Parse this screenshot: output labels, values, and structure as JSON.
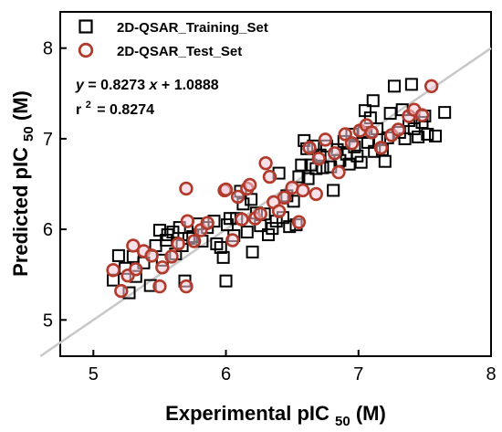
{
  "chart_data": {
    "type": "scatter",
    "xlabel": "Experimental pIC",
    "xlabel_sub": "50",
    "xlabel_unit": " (M)",
    "ylabel": "Predicted pIC",
    "ylabel_sub": "50",
    "ylabel_unit": " (M)",
    "xlim": [
      4.75,
      8.0
    ],
    "ylim": [
      4.6,
      8.4
    ],
    "xticks": [
      "5",
      "6",
      "7",
      "8"
    ],
    "yticks": [
      "5",
      "6",
      "7",
      "8"
    ],
    "grid": false,
    "legend_position": "top-left",
    "identity_line": {
      "x": [
        4.6,
        8.0
      ],
      "y": [
        4.6,
        8.0
      ],
      "color": "#c8c8c8"
    },
    "annotations": {
      "equation_y": "y",
      "equation_eq": "= 0.8273",
      "equation_x": "x",
      "equation_rest": " + 1.0888",
      "r2_r": "r",
      "r2_exp": "2",
      "r2_val": "= 0.8274"
    },
    "series": [
      {
        "name": "2D-QSAR_Training_Set",
        "marker": "square-open",
        "color": "#000000",
        "points": [
          [
            5.15,
            5.44
          ],
          [
            5.19,
            5.71
          ],
          [
            5.24,
            5.57
          ],
          [
            5.27,
            5.3
          ],
          [
            5.3,
            5.7
          ],
          [
            5.32,
            5.48
          ],
          [
            5.38,
            5.63
          ],
          [
            5.43,
            5.38
          ],
          [
            5.47,
            5.82
          ],
          [
            5.5,
            5.99
          ],
          [
            5.52,
            5.66
          ],
          [
            5.55,
            5.88
          ],
          [
            5.56,
            5.94
          ],
          [
            5.6,
            5.97
          ],
          [
            5.62,
            5.73
          ],
          [
            5.65,
            6.02
          ],
          [
            5.67,
            5.82
          ],
          [
            5.69,
            5.43
          ],
          [
            5.72,
            5.9
          ],
          [
            5.75,
            5.92
          ],
          [
            5.79,
            6.06
          ],
          [
            5.82,
            5.87
          ],
          [
            5.86,
            6.02
          ],
          [
            5.91,
            6.09
          ],
          [
            5.93,
            5.84
          ],
          [
            5.96,
            5.8
          ],
          [
            5.98,
            5.69
          ],
          [
            6.0,
            5.43
          ],
          [
            6.01,
            6.05
          ],
          [
            6.03,
            6.12
          ],
          [
            6.06,
            5.93
          ],
          [
            6.08,
            6.12
          ],
          [
            6.11,
            6.42
          ],
          [
            6.13,
            6.28
          ],
          [
            6.16,
            5.97
          ],
          [
            6.19,
            6.33
          ],
          [
            6.2,
            5.75
          ],
          [
            6.23,
            6.18
          ],
          [
            6.26,
            6.04
          ],
          [
            6.29,
            6.17
          ],
          [
            6.32,
            5.94
          ],
          [
            6.35,
            6.01
          ],
          [
            6.38,
            6.09
          ],
          [
            6.4,
            6.62
          ],
          [
            6.43,
            6.13
          ],
          [
            6.46,
            6.37
          ],
          [
            6.48,
            6.03
          ],
          [
            6.51,
            6.31
          ],
          [
            6.53,
            6.05
          ],
          [
            6.55,
            6.58
          ],
          [
            6.57,
            6.71
          ],
          [
            6.59,
            6.98
          ],
          [
            6.61,
            6.89
          ],
          [
            6.62,
            6.56
          ],
          [
            6.64,
            6.71
          ],
          [
            6.66,
            6.92
          ],
          [
            6.68,
            6.67
          ],
          [
            6.71,
            6.82
          ],
          [
            6.73,
            6.68
          ],
          [
            6.76,
            6.92
          ],
          [
            6.79,
            6.69
          ],
          [
            6.81,
            6.43
          ],
          [
            6.84,
            6.88
          ],
          [
            6.86,
            6.76
          ],
          [
            6.89,
            6.97
          ],
          [
            6.91,
            6.83
          ],
          [
            6.93,
            6.72
          ],
          [
            6.95,
            7.05
          ],
          [
            6.97,
            6.91
          ],
          [
            6.99,
            6.81
          ],
          [
            7.02,
            6.74
          ],
          [
            7.04,
            7.07
          ],
          [
            7.05,
            7.31
          ],
          [
            7.07,
            6.96
          ],
          [
            7.09,
            7.23
          ],
          [
            7.11,
            7.42
          ],
          [
            7.12,
            6.86
          ],
          [
            7.14,
            7.11
          ],
          [
            7.16,
            6.99
          ],
          [
            7.18,
            6.88
          ],
          [
            7.2,
            6.75
          ],
          [
            7.22,
            7.01
          ],
          [
            7.24,
            7.28
          ],
          [
            7.27,
            7.58
          ],
          [
            7.31,
            7.07
          ],
          [
            7.33,
            7.32
          ],
          [
            7.35,
            7.0
          ],
          [
            7.38,
            7.2
          ],
          [
            7.4,
            7.6
          ],
          [
            7.42,
            7.11
          ],
          [
            7.45,
            7.02
          ],
          [
            7.48,
            7.18
          ],
          [
            7.5,
            7.25
          ],
          [
            7.52,
            7.05
          ],
          [
            7.58,
            7.03
          ],
          [
            7.65,
            7.29
          ]
        ]
      },
      {
        "name": "2D-QSAR_Test_Set",
        "marker": "circle-open",
        "color": "#b23a2a",
        "points": [
          [
            5.15,
            5.55
          ],
          [
            5.21,
            5.32
          ],
          [
            5.26,
            5.49
          ],
          [
            5.3,
            5.82
          ],
          [
            5.32,
            5.56
          ],
          [
            5.38,
            5.76
          ],
          [
            5.44,
            5.71
          ],
          [
            5.5,
            5.37
          ],
          [
            5.52,
            5.58
          ],
          [
            5.59,
            5.7
          ],
          [
            5.64,
            5.84
          ],
          [
            5.7,
            5.37
          ],
          [
            5.7,
            6.45
          ],
          [
            5.71,
            6.09
          ],
          [
            5.76,
            5.87
          ],
          [
            5.81,
            5.99
          ],
          [
            5.86,
            6.07
          ],
          [
            5.99,
            6.43
          ],
          [
            6.0,
            6.44
          ],
          [
            6.05,
            5.88
          ],
          [
            6.09,
            6.36
          ],
          [
            6.12,
            6.11
          ],
          [
            6.16,
            6.45
          ],
          [
            6.18,
            6.49
          ],
          [
            6.22,
            6.12
          ],
          [
            6.26,
            6.17
          ],
          [
            6.3,
            6.73
          ],
          [
            6.33,
            6.58
          ],
          [
            6.36,
            6.3
          ],
          [
            6.4,
            6.2
          ],
          [
            6.44,
            6.35
          ],
          [
            6.5,
            6.46
          ],
          [
            6.55,
            6.08
          ],
          [
            6.58,
            6.43
          ],
          [
            6.63,
            6.9
          ],
          [
            6.68,
            6.39
          ],
          [
            6.7,
            6.78
          ],
          [
            6.75,
            6.99
          ],
          [
            6.82,
            6.84
          ],
          [
            6.85,
            6.63
          ],
          [
            6.9,
            7.05
          ],
          [
            6.95,
            6.95
          ],
          [
            7.01,
            7.09
          ],
          [
            7.06,
            7.15
          ],
          [
            7.1,
            7.07
          ],
          [
            7.17,
            6.9
          ],
          [
            7.25,
            7.04
          ],
          [
            7.3,
            7.1
          ],
          [
            7.38,
            7.25
          ],
          [
            7.42,
            7.32
          ],
          [
            7.48,
            7.26
          ],
          [
            7.55,
            7.58
          ]
        ]
      }
    ]
  }
}
